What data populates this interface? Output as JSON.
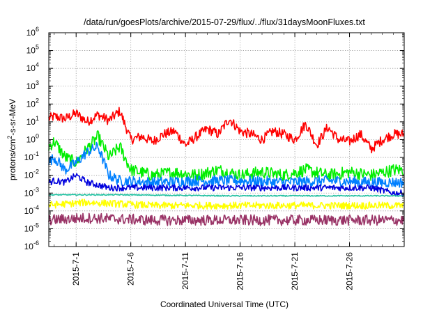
{
  "chart_data": {
    "type": "line",
    "title": "/data/run/goesPlots/archive/2015-07-29/flux/../flux/31daysMoonFluxes.txt",
    "xlabel": "Coordinated Universal Time (UTC)",
    "ylabel_parts": [
      "protons/cm",
      "2",
      "-s-sr-MeV"
    ],
    "yscale": "log",
    "ylim": [
      1e-06,
      1000000.0
    ],
    "y_ticks": [
      {
        "base": "10",
        "exp": "-6"
      },
      {
        "base": "10",
        "exp": "-5"
      },
      {
        "base": "10",
        "exp": "-4"
      },
      {
        "base": "10",
        "exp": "-3"
      },
      {
        "base": "10",
        "exp": "-2"
      },
      {
        "base": "10",
        "exp": "-1"
      },
      {
        "base": "10",
        "exp": "0"
      },
      {
        "base": "10",
        "exp": "1"
      },
      {
        "base": "10",
        "exp": "2"
      },
      {
        "base": "10",
        "exp": "3"
      },
      {
        "base": "10",
        "exp": "4"
      },
      {
        "base": "10",
        "exp": "5"
      },
      {
        "base": "10",
        "exp": "6"
      }
    ],
    "xlim_days_of_july_2015": [
      28.5,
      31.0
    ],
    "x_ticks": [
      "2015-7-1",
      "2015-7-6",
      "2015-7-11",
      "2015-7-16",
      "2015-7-21",
      "2015-7-26"
    ],
    "grid": true,
    "series": [
      {
        "color": "#ff0000",
        "values": [
          {
            "x": "2015-06-28",
            "y": 12
          },
          {
            "x": "2015-06-29",
            "y": 20
          },
          {
            "x": "2015-06-30",
            "y": 15
          },
          {
            "x": "2015-07-01",
            "y": 30
          },
          {
            "x": "2015-07-02",
            "y": 10
          },
          {
            "x": "2015-07-03",
            "y": 25
          },
          {
            "x": "2015-07-04",
            "y": 12
          },
          {
            "x": "2015-07-05",
            "y": 40
          },
          {
            "x": "2015-07-06",
            "y": 1.0
          },
          {
            "x": "2015-07-07",
            "y": 1.5
          },
          {
            "x": "2015-07-08",
            "y": 0.8
          },
          {
            "x": "2015-07-09",
            "y": 2
          },
          {
            "x": "2015-07-10",
            "y": 3
          },
          {
            "x": "2015-07-11",
            "y": 0.5
          },
          {
            "x": "2015-07-12",
            "y": 1.5
          },
          {
            "x": "2015-07-13",
            "y": 4
          },
          {
            "x": "2015-07-14",
            "y": 2
          },
          {
            "x": "2015-07-15",
            "y": 15
          },
          {
            "x": "2015-07-16",
            "y": 3
          },
          {
            "x": "2015-07-17",
            "y": 2
          },
          {
            "x": "2015-07-18",
            "y": 1
          },
          {
            "x": "2015-07-19",
            "y": 3
          },
          {
            "x": "2015-07-20",
            "y": 2
          },
          {
            "x": "2015-07-21",
            "y": 1
          },
          {
            "x": "2015-07-22",
            "y": 8
          },
          {
            "x": "2015-07-23",
            "y": 0.5
          },
          {
            "x": "2015-07-24",
            "y": 5
          },
          {
            "x": "2015-07-25",
            "y": 1
          },
          {
            "x": "2015-07-26",
            "y": 0.8
          },
          {
            "x": "2015-07-27",
            "y": 2
          },
          {
            "x": "2015-07-28",
            "y": 0.3
          },
          {
            "x": "2015-07-29",
            "y": 1
          },
          {
            "x": "2015-07-30",
            "y": 2
          }
        ]
      },
      {
        "color": "#00ee00",
        "values": [
          {
            "x": "2015-06-28",
            "y": 0.2
          },
          {
            "x": "2015-06-29",
            "y": 0.8
          },
          {
            "x": "2015-06-30",
            "y": 0.1
          },
          {
            "x": "2015-07-01",
            "y": 0.05
          },
          {
            "x": "2015-07-02",
            "y": 0.3
          },
          {
            "x": "2015-07-03",
            "y": 1.5
          },
          {
            "x": "2015-07-04",
            "y": 0.1
          },
          {
            "x": "2015-07-05",
            "y": 0.4
          },
          {
            "x": "2015-07-06",
            "y": 0.02
          },
          {
            "x": "2015-07-08",
            "y": 0.01
          },
          {
            "x": "2015-07-10",
            "y": 0.015
          },
          {
            "x": "2015-07-12",
            "y": 0.01
          },
          {
            "x": "2015-07-14",
            "y": 0.02
          },
          {
            "x": "2015-07-16",
            "y": 0.01
          },
          {
            "x": "2015-07-18",
            "y": 0.015
          },
          {
            "x": "2015-07-20",
            "y": 0.01
          },
          {
            "x": "2015-07-22",
            "y": 0.02
          },
          {
            "x": "2015-07-24",
            "y": 0.01
          },
          {
            "x": "2015-07-26",
            "y": 0.015
          },
          {
            "x": "2015-07-28",
            "y": 0.01
          },
          {
            "x": "2015-07-30",
            "y": 0.02
          }
        ]
      },
      {
        "color": "#0080ff",
        "values": [
          {
            "x": "2015-06-28",
            "y": 0.03
          },
          {
            "x": "2015-06-29",
            "y": 0.1
          },
          {
            "x": "2015-06-30",
            "y": 0.02
          },
          {
            "x": "2015-07-01",
            "y": 0.05
          },
          {
            "x": "2015-07-02",
            "y": 0.2
          },
          {
            "x": "2015-07-03",
            "y": 0.4
          },
          {
            "x": "2015-07-04",
            "y": 0.01
          },
          {
            "x": "2015-07-05",
            "y": 0.005
          },
          {
            "x": "2015-07-08",
            "y": 0.004
          },
          {
            "x": "2015-07-12",
            "y": 0.005
          },
          {
            "x": "2015-07-16",
            "y": 0.005
          },
          {
            "x": "2015-07-20",
            "y": 0.004
          },
          {
            "x": "2015-07-24",
            "y": 0.005
          },
          {
            "x": "2015-07-28",
            "y": 0.004
          },
          {
            "x": "2015-07-30",
            "y": 0.004
          }
        ]
      },
      {
        "color": "#0000dd",
        "values": [
          {
            "x": "2015-06-28",
            "y": 0.003
          },
          {
            "x": "2015-06-29",
            "y": 0.005
          },
          {
            "x": "2015-06-30",
            "y": 0.004
          },
          {
            "x": "2015-07-01",
            "y": 0.01
          },
          {
            "x": "2015-07-02",
            "y": 0.004
          },
          {
            "x": "2015-07-04",
            "y": 0.002
          },
          {
            "x": "2015-07-08",
            "y": 0.002
          },
          {
            "x": "2015-07-12",
            "y": 0.002
          },
          {
            "x": "2015-07-16",
            "y": 0.002
          },
          {
            "x": "2015-07-20",
            "y": 0.002
          },
          {
            "x": "2015-07-24",
            "y": 0.002
          },
          {
            "x": "2015-07-28",
            "y": 0.002
          },
          {
            "x": "2015-07-30",
            "y": 0.001
          }
        ]
      },
      {
        "color": "#20c0a0",
        "values": [
          {
            "x": "2015-06-28",
            "y": 0.0008
          },
          {
            "x": "2015-07-05",
            "y": 0.0008
          },
          {
            "x": "2015-07-15",
            "y": 0.0007
          },
          {
            "x": "2015-07-25",
            "y": 0.0007
          },
          {
            "x": "2015-07-30",
            "y": 0.0007
          }
        ]
      },
      {
        "color": "#ffff00",
        "values": [
          {
            "x": "2015-06-28",
            "y": 0.0002
          },
          {
            "x": "2015-07-02",
            "y": 0.0003
          },
          {
            "x": "2015-07-08",
            "y": 0.0002
          },
          {
            "x": "2015-07-15",
            "y": 0.0002
          },
          {
            "x": "2015-07-22",
            "y": 0.0002
          },
          {
            "x": "2015-07-30",
            "y": 0.0002
          }
        ]
      },
      {
        "color": "#993366",
        "values": [
          {
            "x": "2015-06-28",
            "y": 3e-05
          },
          {
            "x": "2015-07-02",
            "y": 4e-05
          },
          {
            "x": "2015-07-08",
            "y": 3e-05
          },
          {
            "x": "2015-07-15",
            "y": 3e-05
          },
          {
            "x": "2015-07-22",
            "y": 3e-05
          },
          {
            "x": "2015-07-30",
            "y": 3e-05
          }
        ]
      }
    ]
  }
}
